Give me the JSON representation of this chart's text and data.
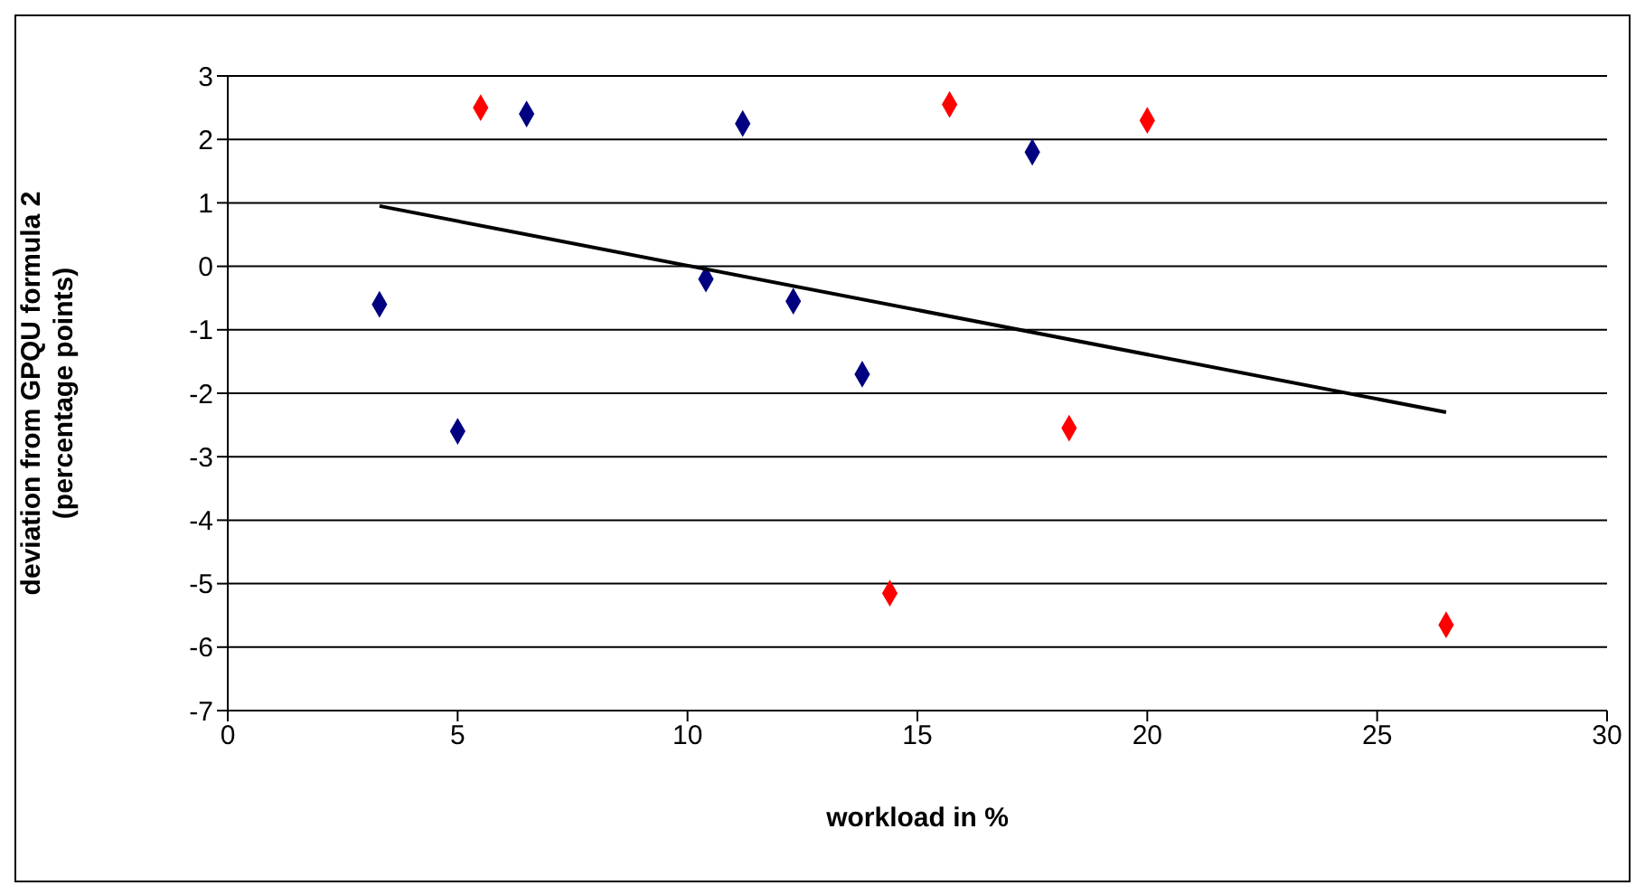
{
  "chart_data": {
    "type": "scatter",
    "xlabel": "workload in %",
    "ylabel": "deviation from GPQU formula 2\n(percentage points)",
    "xlim": [
      0,
      30
    ],
    "xticks": [
      0,
      5,
      10,
      15,
      20,
      25,
      30
    ],
    "ylim": [
      -7,
      3
    ],
    "yticks": [
      -7,
      -6,
      -5,
      -4,
      -3,
      -2,
      -1,
      0,
      1,
      2,
      3
    ],
    "grid": "y",
    "marker": "diamond",
    "series": [
      {
        "color": "#000080",
        "x": [
          3.3,
          5.0,
          6.5,
          10.4,
          11.2,
          12.3,
          13.8,
          17.5
        ],
        "values": [
          -0.6,
          -2.6,
          2.4,
          -0.2,
          2.25,
          -0.55,
          -1.7,
          1.8
        ]
      },
      {
        "color": "#ff0000",
        "x": [
          5.5,
          14.4,
          15.7,
          18.3,
          20.0,
          26.5
        ],
        "values": [
          2.5,
          -5.15,
          2.55,
          -2.55,
          2.3,
          -5.65
        ]
      },
      {
        "type": "line",
        "color": "#000000",
        "marker": "none",
        "x": [
          3.3,
          26.5
        ],
        "values": [
          0.95,
          -2.3
        ]
      }
    ]
  }
}
